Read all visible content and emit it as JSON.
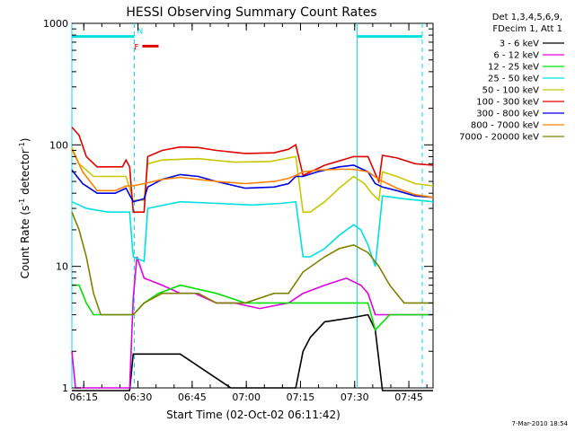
{
  "chart_data": {
    "type": "line",
    "title": "HESSI Observing Summary Count Rates",
    "xlabel": "Start Time (02-Oct-02 06:11:42)",
    "ylabel_main": "Count Rate (s",
    "ylabel_sup1": "-1",
    "ylabel_mid": " detector",
    "ylabel_sup2": "-1",
    "ylabel_end": ")",
    "x_unit": "minutes after 06:11:42",
    "xlim": [
      0,
      100
    ],
    "ylim": [
      1,
      1000
    ],
    "y_scale": "log",
    "x_ticks": [
      {
        "value": 3.3,
        "label": "06:15"
      },
      {
        "value": 18.3,
        "label": "06:30"
      },
      {
        "value": 33.3,
        "label": "06:45"
      },
      {
        "value": 48.3,
        "label": "07:00"
      },
      {
        "value": 63.3,
        "label": "07:15"
      },
      {
        "value": 78.3,
        "label": "07:30"
      },
      {
        "value": 93.3,
        "label": "07:45"
      }
    ],
    "y_ticks": [
      {
        "value": 1,
        "label": "1"
      },
      {
        "value": 10,
        "label": "10"
      },
      {
        "value": 100,
        "label": "100"
      },
      {
        "value": 1000,
        "label": "1000"
      }
    ],
    "legend_header": [
      "Det 1,3,4,5,6,9,",
      "FDecim 1, Att 1"
    ],
    "legend_position": "right",
    "series": [
      {
        "name": "3 - 6 keV",
        "color": "#000000",
        "points": [
          [
            0,
            0.9
          ],
          [
            16,
            0.9
          ],
          [
            17,
            1.9
          ],
          [
            30,
            1.9
          ],
          [
            44,
            1.0
          ],
          [
            62,
            1.0
          ],
          [
            64,
            2.0
          ],
          [
            66,
            2.6
          ],
          [
            70,
            3.5
          ],
          [
            78,
            3.8
          ],
          [
            82,
            4.0
          ],
          [
            84,
            3.0
          ],
          [
            86,
            0.9
          ],
          [
            100,
            0.9
          ]
        ]
      },
      {
        "name": "6 - 12 keV",
        "color": "#e000e0",
        "points": [
          [
            0,
            2.0
          ],
          [
            1,
            1.0
          ],
          [
            16,
            1.0
          ],
          [
            17,
            5.5
          ],
          [
            18,
            12
          ],
          [
            20,
            8
          ],
          [
            25,
            7
          ],
          [
            30,
            6
          ],
          [
            34,
            6
          ],
          [
            40,
            5
          ],
          [
            45,
            5
          ],
          [
            52,
            4.5
          ],
          [
            60,
            5
          ],
          [
            64,
            6
          ],
          [
            70,
            7
          ],
          [
            76,
            8
          ],
          [
            80,
            7
          ],
          [
            82,
            6
          ],
          [
            84,
            4
          ],
          [
            90,
            4
          ],
          [
            100,
            4
          ]
        ]
      },
      {
        "name": "12 - 25 keV",
        "color": "#00e000",
        "points": [
          [
            0,
            7
          ],
          [
            2,
            7
          ],
          [
            4,
            5
          ],
          [
            6,
            4
          ],
          [
            16,
            4
          ],
          [
            17,
            4
          ],
          [
            20,
            5
          ],
          [
            24,
            6
          ],
          [
            30,
            7
          ],
          [
            40,
            6
          ],
          [
            48,
            5
          ],
          [
            56,
            5
          ],
          [
            62,
            5
          ],
          [
            64,
            5
          ],
          [
            70,
            5
          ],
          [
            78,
            5
          ],
          [
            82,
            5
          ],
          [
            84,
            3
          ],
          [
            88,
            4
          ],
          [
            92,
            4
          ],
          [
            100,
            4
          ]
        ]
      },
      {
        "name": "25 - 50 keV",
        "color": "#00e0e0",
        "points": [
          [
            0,
            34
          ],
          [
            4,
            30
          ],
          [
            10,
            28
          ],
          [
            16,
            28
          ],
          [
            17,
            12
          ],
          [
            20,
            11
          ],
          [
            21,
            30
          ],
          [
            30,
            34
          ],
          [
            40,
            33
          ],
          [
            50,
            32
          ],
          [
            58,
            33
          ],
          [
            62,
            34
          ],
          [
            64,
            12
          ],
          [
            66,
            12
          ],
          [
            70,
            14
          ],
          [
            74,
            18
          ],
          [
            78,
            22
          ],
          [
            80,
            20
          ],
          [
            82,
            15
          ],
          [
            84,
            10
          ],
          [
            86,
            38
          ],
          [
            92,
            36
          ],
          [
            100,
            34
          ]
        ]
      },
      {
        "name": "50 - 100 keV",
        "color": "#c8c800",
        "points": [
          [
            0,
            95
          ],
          [
            2,
            70
          ],
          [
            6,
            55
          ],
          [
            10,
            55
          ],
          [
            15,
            55
          ],
          [
            17,
            35
          ],
          [
            20,
            35
          ],
          [
            21,
            70
          ],
          [
            25,
            75
          ],
          [
            35,
            77
          ],
          [
            45,
            72
          ],
          [
            55,
            73
          ],
          [
            62,
            80
          ],
          [
            64,
            28
          ],
          [
            66,
            28
          ],
          [
            70,
            34
          ],
          [
            74,
            44
          ],
          [
            78,
            55
          ],
          [
            81,
            48
          ],
          [
            83,
            40
          ],
          [
            85,
            35
          ],
          [
            86,
            60
          ],
          [
            90,
            55
          ],
          [
            95,
            48
          ],
          [
            100,
            46
          ]
        ]
      },
      {
        "name": "100 - 300 keV",
        "color": "#e00000",
        "points": [
          [
            0,
            140
          ],
          [
            2,
            120
          ],
          [
            4,
            80
          ],
          [
            7,
            66
          ],
          [
            14,
            66
          ],
          [
            15,
            75
          ],
          [
            16,
            66
          ],
          [
            17,
            28
          ],
          [
            20,
            28
          ],
          [
            21,
            80
          ],
          [
            25,
            90
          ],
          [
            30,
            96
          ],
          [
            35,
            95
          ],
          [
            40,
            90
          ],
          [
            48,
            85
          ],
          [
            56,
            86
          ],
          [
            60,
            92
          ],
          [
            62,
            100
          ],
          [
            64,
            56
          ],
          [
            70,
            68
          ],
          [
            78,
            80
          ],
          [
            82,
            80
          ],
          [
            84,
            58
          ],
          [
            85,
            50
          ],
          [
            86,
            82
          ],
          [
            90,
            78
          ],
          [
            95,
            70
          ],
          [
            100,
            68
          ]
        ]
      },
      {
        "name": "300 - 800 keV",
        "color": "#0000e0",
        "points": [
          [
            0,
            62
          ],
          [
            3,
            48
          ],
          [
            7,
            40
          ],
          [
            12,
            40
          ],
          [
            15,
            44
          ],
          [
            17,
            34
          ],
          [
            20,
            36
          ],
          [
            21,
            45
          ],
          [
            25,
            52
          ],
          [
            30,
            57
          ],
          [
            35,
            55
          ],
          [
            40,
            50
          ],
          [
            48,
            44
          ],
          [
            56,
            45
          ],
          [
            60,
            48
          ],
          [
            62,
            55
          ],
          [
            64,
            55
          ],
          [
            68,
            60
          ],
          [
            74,
            66
          ],
          [
            78,
            68
          ],
          [
            80,
            64
          ],
          [
            82,
            60
          ],
          [
            84,
            48
          ],
          [
            86,
            45
          ],
          [
            90,
            42
          ],
          [
            95,
            38
          ],
          [
            100,
            37
          ]
        ]
      },
      {
        "name": "800 - 7000 keV",
        "color": "#ff8000",
        "points": [
          [
            0,
            92
          ],
          [
            3,
            60
          ],
          [
            7,
            42
          ],
          [
            12,
            42
          ],
          [
            15,
            46
          ],
          [
            17,
            46
          ],
          [
            20,
            48
          ],
          [
            25,
            52
          ],
          [
            30,
            54
          ],
          [
            35,
            52
          ],
          [
            40,
            50
          ],
          [
            48,
            48
          ],
          [
            56,
            50
          ],
          [
            60,
            53
          ],
          [
            62,
            56
          ],
          [
            64,
            60
          ],
          [
            68,
            62
          ],
          [
            74,
            63
          ],
          [
            78,
            63
          ],
          [
            82,
            60
          ],
          [
            85,
            52
          ],
          [
            90,
            44
          ],
          [
            95,
            39
          ],
          [
            100,
            37
          ]
        ]
      },
      {
        "name": "7000 - 20000 keV",
        "color": "#808000",
        "points": [
          [
            0,
            28
          ],
          [
            2,
            20
          ],
          [
            4,
            12
          ],
          [
            6,
            6
          ],
          [
            8,
            4
          ],
          [
            16,
            4
          ],
          [
            17,
            4
          ],
          [
            20,
            5
          ],
          [
            25,
            6
          ],
          [
            30,
            6
          ],
          [
            35,
            6
          ],
          [
            40,
            5
          ],
          [
            48,
            5
          ],
          [
            56,
            6
          ],
          [
            60,
            6
          ],
          [
            64,
            9
          ],
          [
            70,
            12
          ],
          [
            74,
            14
          ],
          [
            78,
            15
          ],
          [
            82,
            13
          ],
          [
            85,
            10
          ],
          [
            88,
            7
          ],
          [
            92,
            5
          ],
          [
            96,
            5
          ],
          [
            100,
            5
          ]
        ]
      }
    ],
    "flag_lines": [
      {
        "name": "N",
        "color": "#00e0e0",
        "x": [
          0,
          17.3
        ],
        "level": 780
      },
      {
        "name": "F",
        "color": "#e00000",
        "x": [
          19.5,
          24
        ],
        "level": 650
      },
      {
        "name": "cyan-bar-right",
        "color": "#00e0e0",
        "x": [
          79,
          97
        ],
        "level": 780
      }
    ],
    "vertical_lines": [
      {
        "x": 0,
        "color": "#00e0e0",
        "style": "solid"
      },
      {
        "x": 17.3,
        "color": "#00e0e0",
        "style": "dashed"
      },
      {
        "x": 79,
        "color": "#00e0e0",
        "style": "solid"
      },
      {
        "x": 97,
        "color": "#00e0e0",
        "style": "dashed"
      }
    ],
    "grid": false
  },
  "timestamp": "7-Mar-2010 18:54"
}
